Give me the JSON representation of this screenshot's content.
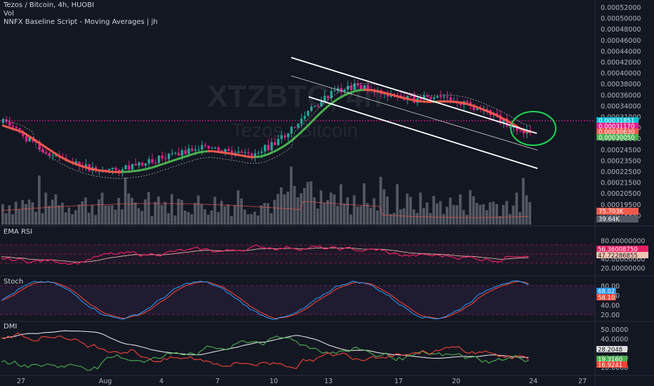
{
  "header": {
    "title": "Tezos / Bitcoin, 4h, HUOBI",
    "vol_label": "Vol",
    "script_label": "NNFX Baseline Script - Moving Averages | jh"
  },
  "watermark": {
    "symbol": "XTZBTC, 4h",
    "name": "Tezos / Bitcoin"
  },
  "colors": {
    "background": "#131722",
    "bull": "#26a69a",
    "bear": "#e91e8c",
    "baseline_up": "#4caf50",
    "baseline_down": "#f05a4b",
    "channel": "#ffffff",
    "rsi": "#e91e63",
    "stoch_k": "#2196f3",
    "stoch_d": "#f44336",
    "dmi_adx": "#e0e0e0",
    "dmi_plus": "#4caf50",
    "dmi_minus": "#f44336",
    "ellipse": "#1fd655"
  },
  "panes": {
    "rsi_title": "EMA RSI",
    "stoch_title": "Stoch",
    "dmi_title": "DMI"
  },
  "price_axis": {
    "labels": [
      "0.00052000",
      "0.00050000",
      "0.00048000",
      "0.00046000",
      "0.00044000",
      "0.00042000",
      "0.00040000",
      "0.00038000",
      "0.00036000",
      "0.00034000",
      "0.00031000",
      "0.00029000",
      "0.00026000",
      "0.00024500",
      "0.00023500",
      "0.00022500",
      "0.00021500",
      "0.00020500",
      "0.00019500",
      "0.00018850"
    ],
    "tags": [
      {
        "text": "0.00031851",
        "color": "#00bcd4"
      },
      {
        "text": "0.00031170",
        "color": "#e91e8c"
      },
      {
        "text": "0.00030630",
        "color": "#f05a4b"
      },
      {
        "text": "0.00030050",
        "color": "#4caf50"
      }
    ],
    "vol_tags": [
      {
        "text": "75.703K",
        "color": "#f05a4b"
      },
      {
        "text": "39.64K",
        "color": "#555a66"
      }
    ]
  },
  "rsi_axis": {
    "labels": [
      "80.00000000",
      "60.00000000",
      "40.00000000",
      "20.00000000"
    ],
    "tags": [
      {
        "text": "56.36008750",
        "color": "#e91e63"
      },
      {
        "text": "47.72286855",
        "color": "#f3c6b3"
      }
    ]
  },
  "stoch_axis": {
    "labels": [
      "80.00",
      "60.00",
      "40.00",
      "20.00"
    ],
    "tags": [
      {
        "text": "68.02",
        "color": "#2196f3"
      },
      {
        "text": "58.10",
        "color": "#f44336"
      }
    ]
  },
  "dmi_axis": {
    "labels": [
      "50.0000",
      "40.0000",
      "30.0000",
      "20.0000",
      "10.0000"
    ],
    "tags": [
      {
        "text": "28.2048",
        "color": "#e0e0e0"
      },
      {
        "text": "19.3160",
        "color": "#4caf50"
      },
      {
        "text": "16.9241",
        "color": "#f44336"
      }
    ]
  },
  "time_axis": {
    "labels": [
      "27",
      "Aug",
      "4",
      "7",
      "10",
      "13",
      "17",
      "20",
      "24",
      "27"
    ]
  },
  "chart_data": {
    "type": "candlestick",
    "title": "Tezos / Bitcoin, 4h, HUOBI",
    "price_range": [
      0.0001885,
      0.00052
    ],
    "volume_last": "39.64K",
    "volume_ma_last": "75.703K",
    "rsi_last": 56.3600875,
    "rsi_ma_last": 47.72286855,
    "stoch_k_last": 68.02,
    "stoch_d_last": 58.1,
    "adx_last": 28.2048,
    "di_plus_last": 19.316,
    "di_minus_last": 16.9241,
    "last_price": 0.00031851
  }
}
